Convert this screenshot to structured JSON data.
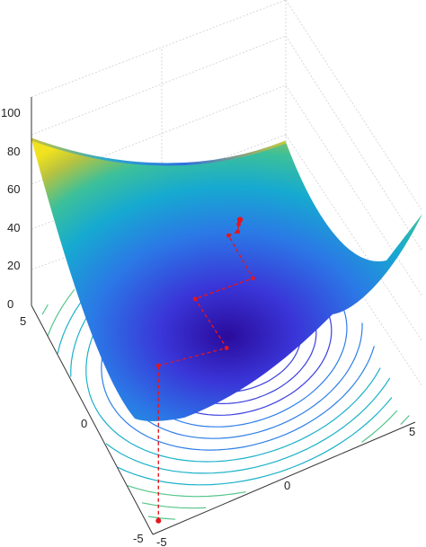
{
  "chart_data": {
    "type": "surface3d",
    "title": "",
    "xlabel": "",
    "ylabel": "",
    "zlabel": "",
    "xlim": [
      -5,
      5
    ],
    "ylim": [
      -5,
      5
    ],
    "zlim": [
      0,
      100
    ],
    "z_ticks": [
      "0",
      "20",
      "40",
      "60",
      "80",
      "100"
    ],
    "x_ticks": [
      "-5",
      "0",
      "5"
    ],
    "y_ticks": [
      "-5",
      "0",
      "5"
    ],
    "grid": true,
    "colormap": "parula",
    "contours_projected": true,
    "surface_color_stops": [
      "#2e0fa8",
      "#3c3fe0",
      "#2f7fe8",
      "#1bb1c9",
      "#55c58a",
      "#c9c23a",
      "#f2e81c"
    ],
    "path_color": "#e3161e",
    "descent_path": {
      "x": [
        -4.6,
        -2.0,
        -2.0,
        0.2,
        0.2,
        0.55,
        0.7,
        0.78,
        0.82
      ],
      "y": [
        -4.6,
        -4.6,
        -2.0,
        -2.0,
        0.0,
        0.0,
        0.25,
        0.35,
        0.4
      ]
    }
  }
}
